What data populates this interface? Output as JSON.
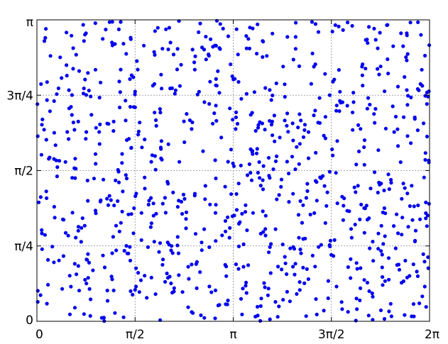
{
  "chart_data": {
    "type": "scatter",
    "title": "",
    "xlabel": "",
    "ylabel": "",
    "xlim": [
      0,
      6.2832
    ],
    "ylim": [
      0,
      3.1416
    ],
    "grid": true,
    "marker_color": "#0000ee",
    "x_ticks": [
      {
        "value": 0,
        "label": "0"
      },
      {
        "value": 1.5708,
        "label": "π/2"
      },
      {
        "value": 3.1416,
        "label": "π"
      },
      {
        "value": 4.7124,
        "label": "3π/2"
      },
      {
        "value": 6.2832,
        "label": "2π"
      }
    ],
    "y_ticks": [
      {
        "value": 0,
        "label": "0"
      },
      {
        "value": 0.7854,
        "label": "π/4"
      },
      {
        "value": 1.5708,
        "label": "π/2"
      },
      {
        "value": 2.3562,
        "label": "3π/4"
      },
      {
        "value": 3.1416,
        "label": "π"
      }
    ],
    "point_count": 900,
    "distribution": "uniform random over [0, 2π] × [0, π]"
  }
}
